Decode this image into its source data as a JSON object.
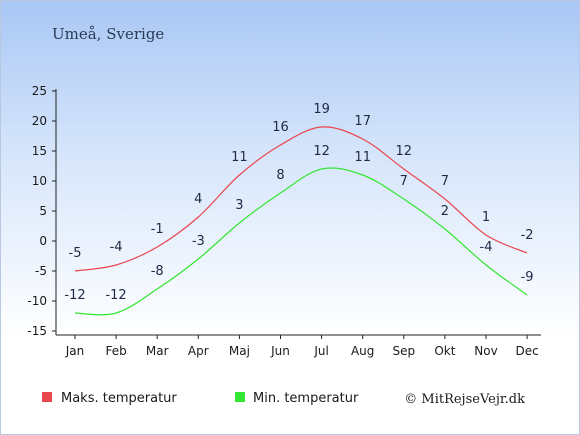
{
  "chart_data": {
    "type": "line",
    "title": "Umeå, Sverige",
    "categories": [
      "Jan",
      "Feb",
      "Mar",
      "Apr",
      "Maj",
      "Jun",
      "Jul",
      "Aug",
      "Sep",
      "Okt",
      "Nov",
      "Dec"
    ],
    "series": [
      {
        "name": "Maks. temperatur",
        "color": "#e8474d",
        "values": [
          -5,
          -4,
          -1,
          4,
          11,
          16,
          19,
          17,
          12,
          7,
          1,
          -2
        ]
      },
      {
        "name": "Min. temperatur",
        "color": "#33e633",
        "values": [
          -12,
          -12,
          -8,
          -3,
          3,
          8,
          12,
          11,
          7,
          2,
          -4,
          -9
        ]
      }
    ],
    "ylim": [
      -15,
      25
    ],
    "yticks": [
      25,
      20,
      15,
      10,
      5,
      0,
      -5,
      -10,
      -15
    ],
    "grid": false,
    "legend": "bottom"
  },
  "credit": "© MitRejseVejr.dk"
}
